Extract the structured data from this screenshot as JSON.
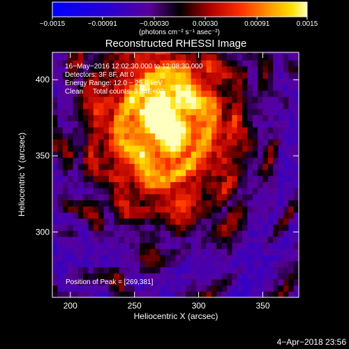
{
  "chart_data": {
    "type": "heatmap",
    "title": "Reconstructed RHESSI Image",
    "xlabel": "Heliocentric X (arcsec)",
    "ylabel": "Heliocentric Y (arcsec)",
    "xlim": [
      186,
      378
    ],
    "ylim": [
      257,
      418
    ],
    "x_ticks": [
      200,
      250,
      300,
      350
    ],
    "y_ticks": [
      300,
      350,
      400
    ],
    "colorbar": {
      "unit_label": "(photons cm⁻² s⁻¹ asec⁻²)",
      "range": [
        -0.0015,
        0.0015
      ],
      "tick_labels": [
        "−0.0015",
        "−0.00091",
        "−0.00030",
        "0.00030",
        "0.00091",
        "0.0015"
      ],
      "tick_values": [
        -0.0015,
        -0.00091,
        -0.0003,
        0.0003,
        0.00091,
        0.0015
      ]
    },
    "info_lines": [
      "16−May−2016 12:02:30.000 to 12:08:30.000",
      "Detectors: 3F 8F, Att 0",
      "Energy Range: 12.0 − 25.0 keV",
      "Clean     Total counts: 3.34E+03"
    ],
    "peak_text": "Position of Peak = [269,381]",
    "peak": {
      "x": 269,
      "y": 381
    },
    "source_center": {
      "x": 274,
      "y": 370
    }
  },
  "footer": {
    "timestamp": "4−Apr−2018 23:56"
  }
}
